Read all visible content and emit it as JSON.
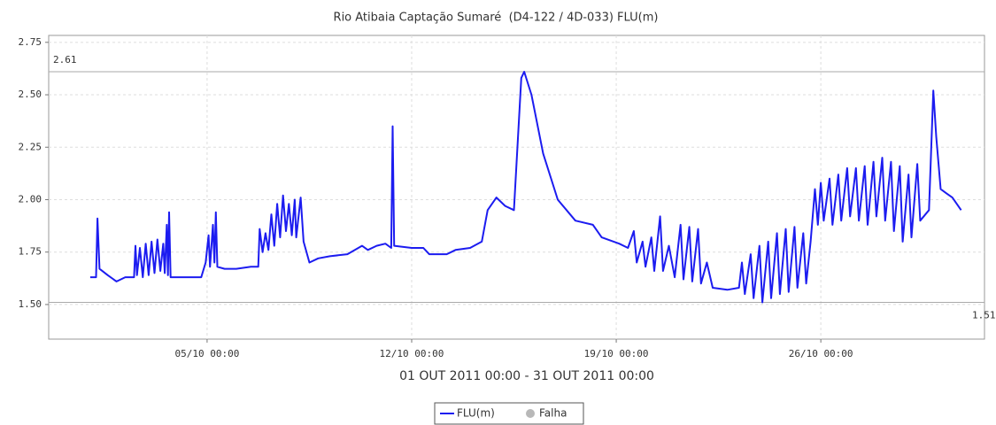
{
  "chart_data": {
    "type": "line",
    "title": "Rio Atibaia Captação Sumaré  (D4-122 / 4D-033) FLU(m)",
    "x_label": "01 OUT 2011 00:00 - 31 OUT 2011 00:00",
    "x": [
      1.0,
      1.2,
      1.25,
      1.32,
      1.6,
      1.9,
      2.2,
      2.5,
      2.55,
      2.6,
      2.7,
      2.8,
      2.9,
      3.0,
      3.1,
      3.2,
      3.3,
      3.4,
      3.5,
      3.55,
      3.62,
      3.66,
      3.7,
      3.75,
      4.0,
      4.4,
      4.8,
      4.95,
      5.05,
      5.1,
      5.2,
      5.25,
      5.3,
      5.35,
      5.6,
      6.0,
      6.5,
      6.75,
      6.8,
      6.9,
      7.0,
      7.1,
      7.2,
      7.3,
      7.4,
      7.5,
      7.6,
      7.7,
      7.8,
      7.9,
      8.0,
      8.05,
      8.2,
      8.3,
      8.5,
      8.8,
      9.2,
      9.8,
      10.3,
      10.5,
      10.8,
      11.1,
      11.3,
      11.35,
      11.4,
      12.0,
      12.4,
      12.6,
      13.2,
      13.5,
      14.0,
      14.4,
      14.6,
      14.9,
      15.2,
      15.5,
      15.75,
      15.85,
      16.1,
      16.5,
      17.0,
      17.6,
      18.2,
      18.5,
      19.1,
      19.4,
      19.6,
      19.7,
      19.9,
      20.0,
      20.2,
      20.3,
      20.5,
      20.6,
      20.8,
      21.0,
      21.2,
      21.3,
      21.5,
      21.6,
      21.8,
      21.9,
      22.1,
      22.3,
      22.8,
      23.2,
      23.3,
      23.4,
      23.6,
      23.7,
      23.9,
      24.0,
      24.2,
      24.3,
      24.5,
      24.6,
      24.8,
      24.9,
      25.1,
      25.2,
      25.4,
      25.5,
      25.65,
      25.8,
      25.9,
      26.0,
      26.1,
      26.3,
      26.4,
      26.6,
      26.7,
      26.9,
      27.0,
      27.2,
      27.3,
      27.5,
      27.6,
      27.8,
      27.9,
      28.1,
      28.2,
      28.4,
      28.5,
      28.7,
      28.8,
      29.0,
      29.1,
      29.3,
      29.4,
      29.7,
      29.85,
      29.95,
      30.1,
      30.3,
      30.5,
      30.8
    ],
    "series": [
      {
        "name": "FLU(m)",
        "color": "#1c1cf0",
        "values": [
          1.63,
          1.63,
          1.91,
          1.67,
          1.64,
          1.61,
          1.63,
          1.63,
          1.78,
          1.64,
          1.77,
          1.63,
          1.79,
          1.64,
          1.8,
          1.65,
          1.81,
          1.66,
          1.79,
          1.65,
          1.88,
          1.64,
          1.94,
          1.63,
          1.63,
          1.63,
          1.63,
          1.7,
          1.83,
          1.68,
          1.88,
          1.7,
          1.94,
          1.68,
          1.67,
          1.67,
          1.68,
          1.68,
          1.86,
          1.75,
          1.84,
          1.76,
          1.93,
          1.78,
          1.98,
          1.82,
          2.02,
          1.85,
          1.98,
          1.83,
          2.0,
          1.82,
          2.01,
          1.8,
          1.7,
          1.72,
          1.73,
          1.74,
          1.78,
          1.76,
          1.78,
          1.79,
          1.77,
          2.35,
          1.78,
          1.77,
          1.77,
          1.74,
          1.74,
          1.76,
          1.77,
          1.8,
          1.95,
          2.01,
          1.97,
          1.95,
          2.58,
          2.61,
          2.5,
          2.22,
          2.0,
          1.9,
          1.88,
          1.82,
          1.79,
          1.77,
          1.85,
          1.7,
          1.8,
          1.68,
          1.82,
          1.66,
          1.92,
          1.66,
          1.78,
          1.63,
          1.88,
          1.62,
          1.87,
          1.61,
          1.86,
          1.6,
          1.7,
          1.58,
          1.57,
          1.58,
          1.7,
          1.55,
          1.74,
          1.53,
          1.78,
          1.51,
          1.8,
          1.53,
          1.84,
          1.55,
          1.86,
          1.56,
          1.87,
          1.58,
          1.84,
          1.6,
          1.8,
          2.05,
          1.88,
          2.08,
          1.9,
          2.1,
          1.88,
          2.12,
          1.9,
          2.15,
          1.92,
          2.15,
          1.9,
          2.16,
          1.88,
          2.18,
          1.92,
          2.2,
          1.9,
          2.18,
          1.85,
          2.16,
          1.8,
          2.12,
          1.82,
          2.17,
          1.9,
          1.95,
          2.52,
          2.3,
          2.05,
          2.03,
          2.01,
          1.95
        ]
      }
    ],
    "extra_legend": [
      {
        "name": "Falha",
        "color": "#b8b8b8"
      }
    ],
    "markers": {
      "max": 2.61,
      "min": 1.51
    },
    "xlim": [
      -0.42,
      31.6
    ],
    "xticks": [
      {
        "value": 5,
        "label": "05/10 00:00"
      },
      {
        "value": 12,
        "label": "12/10 00:00"
      },
      {
        "value": 19,
        "label": "19/10 00:00"
      },
      {
        "value": 26,
        "label": "26/10 00:00"
      }
    ],
    "ylim": [
      1.335,
      2.783
    ],
    "yticks": [
      {
        "value": 1.5,
        "label": "1.50"
      },
      1.75,
      {
        "value": 2,
        "label": "2.00"
      },
      2.25,
      {
        "value": 2.5,
        "label": "2.50"
      },
      2.75
    ],
    "grid": true
  }
}
